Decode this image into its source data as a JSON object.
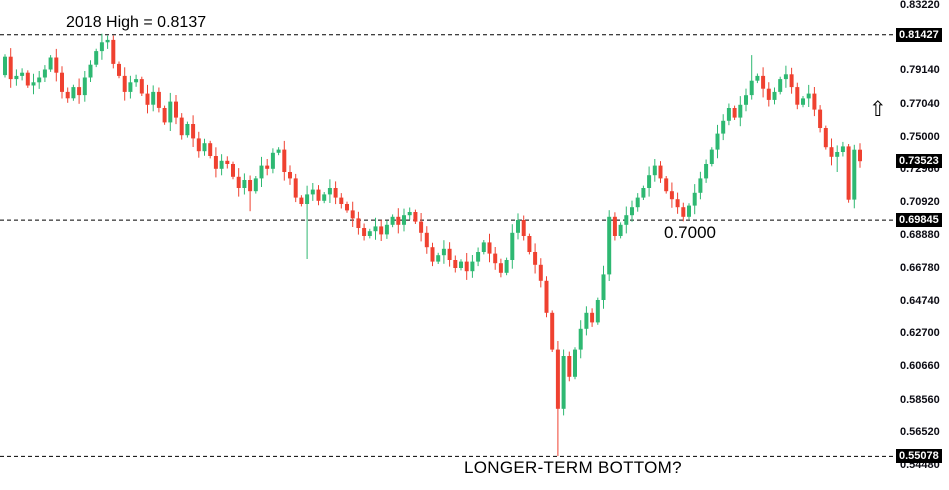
{
  "annotations": {
    "high_label": "2018 High = 0.8137",
    "round_level_label": "0.7000",
    "bottom_label": "LONGER-TERM BOTTOM?",
    "arrow_symbol": "⇧"
  },
  "colors": {
    "background": "#ffffff",
    "bull": "#2eb872",
    "bear": "#ef4130",
    "dashed_line": "#000000",
    "axis_text": "#0c0c14",
    "badge_bg": "#000000",
    "badge_text": "#ffffff",
    "annotation_text": "#000000"
  },
  "chart_data": {
    "type": "candlestick",
    "title": "",
    "xlabel": "",
    "ylabel": "",
    "grid": "off",
    "legend": "none",
    "ylim": [
      0.5448,
      0.8322
    ],
    "dashed_levels": [
      0.81427,
      0.69845,
      0.55078
    ],
    "last_price": 0.73523,
    "high_2018": 0.8137,
    "covid_low": 0.551,
    "y_axis_labels": [
      {
        "text": "0.83220",
        "value": 0.8322,
        "highlighted": false
      },
      {
        "text": "0.81180",
        "value": 0.8118,
        "highlighted": false
      },
      {
        "text": "0.81427",
        "value": 0.81427,
        "highlighted": true
      },
      {
        "text": "0.79140",
        "value": 0.7914,
        "highlighted": false
      },
      {
        "text": "0.77040",
        "value": 0.7704,
        "highlighted": false
      },
      {
        "text": "0.75000",
        "value": 0.75,
        "highlighted": false
      },
      {
        "text": "0.72960",
        "value": 0.7296,
        "highlighted": false
      },
      {
        "text": "0.73523",
        "value": 0.73523,
        "highlighted": true
      },
      {
        "text": "0.70920",
        "value": 0.7092,
        "highlighted": false
      },
      {
        "text": "0.69845",
        "value": 0.69845,
        "highlighted": true
      },
      {
        "text": "0.68880",
        "value": 0.6888,
        "highlighted": false
      },
      {
        "text": "0.66780",
        "value": 0.6678,
        "highlighted": false
      },
      {
        "text": "0.64740",
        "value": 0.6474,
        "highlighted": false
      },
      {
        "text": "0.62700",
        "value": 0.627,
        "highlighted": false
      },
      {
        "text": "0.60660",
        "value": 0.6066,
        "highlighted": false
      },
      {
        "text": "0.58560",
        "value": 0.5856,
        "highlighted": false
      },
      {
        "text": "0.56520",
        "value": 0.5652,
        "highlighted": false
      },
      {
        "text": "0.55078",
        "value": 0.55078,
        "highlighted": true
      },
      {
        "text": "0.54480",
        "value": 0.5448,
        "highlighted": false
      }
    ],
    "series": {
      "name": "price",
      "open_first": 0.789,
      "closes": [
        0.8005,
        0.7865,
        0.7885,
        0.7905,
        0.7825,
        0.7845,
        0.7875,
        0.7925,
        0.8,
        0.7905,
        0.7785,
        0.7745,
        0.7815,
        0.7765,
        0.7875,
        0.7955,
        0.804,
        0.8095,
        0.811,
        0.796,
        0.7885,
        0.7785,
        0.7845,
        0.7865,
        0.7775,
        0.7705,
        0.7785,
        0.7685,
        0.7595,
        0.7725,
        0.7625,
        0.7515,
        0.7585,
        0.7495,
        0.7415,
        0.7465,
        0.7385,
        0.7305,
        0.7355,
        0.7335,
        0.7255,
        0.7185,
        0.7235,
        0.7165,
        0.7245,
        0.7325,
        0.7305,
        0.7405,
        0.7425,
        0.7285,
        0.7245,
        0.7125,
        0.7085,
        0.7145,
        0.7175,
        0.7105,
        0.7145,
        0.7185,
        0.7125,
        0.7085,
        0.7045,
        0.6995,
        0.6935,
        0.6885,
        0.6915,
        0.6945,
        0.6895,
        0.6955,
        0.7005,
        0.6955,
        0.7015,
        0.7035,
        0.6975,
        0.6905,
        0.6815,
        0.6725,
        0.6765,
        0.6805,
        0.6735,
        0.6685,
        0.6725,
        0.6665,
        0.6725,
        0.6785,
        0.6845,
        0.6775,
        0.6715,
        0.6655,
        0.6735,
        0.6905,
        0.6985,
        0.6885,
        0.6785,
        0.6705,
        0.6605,
        0.6405,
        0.6175,
        0.5805,
        0.6135,
        0.6005,
        0.6175,
        0.6305,
        0.6405,
        0.6345,
        0.6485,
        0.6645,
        0.7005,
        0.6885,
        0.6955,
        0.7015,
        0.7065,
        0.7125,
        0.7185,
        0.7265,
        0.7325,
        0.7245,
        0.7165,
        0.7115,
        0.7065,
        0.7005,
        0.7075,
        0.7155,
        0.7245,
        0.7335,
        0.7425,
        0.7525,
        0.7605,
        0.7685,
        0.7625,
        0.7705,
        0.7765,
        0.7855,
        0.7885,
        0.7805,
        0.7735,
        0.7785,
        0.7865,
        0.7895,
        0.7815,
        0.7705,
        0.7745,
        0.7775,
        0.7675,
        0.756,
        0.744,
        0.738,
        0.741,
        0.7445,
        0.7112,
        0.7424,
        0.73523
      ],
      "wick_overrides": {
        "18": {
          "high": 0.8137
        },
        "43": {
          "low": 0.704
        },
        "53": {
          "low": 0.6741
        },
        "97": {
          "low": 0.551
        },
        "131": {
          "high": 0.8015
        },
        "146": {
          "low": 0.7285
        },
        "148": {
          "low": 0.7093
        },
        "149": {
          "high": 0.7455
        }
      }
    }
  }
}
